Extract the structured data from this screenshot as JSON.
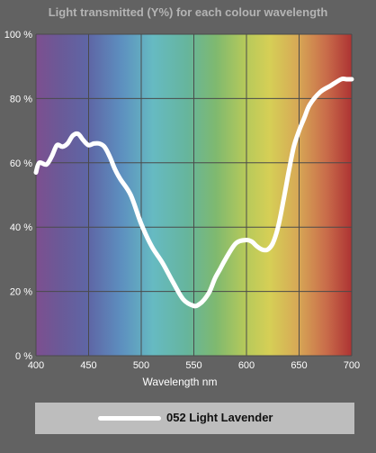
{
  "chart_data": {
    "type": "line",
    "title": "Light transmitted (Y%) for each colour wavelength",
    "xlabel": "Wavelength nm",
    "ylabel": "",
    "xlim": [
      400,
      700
    ],
    "ylim": [
      0,
      100
    ],
    "x_ticks": [
      "400",
      "450",
      "500",
      "550",
      "600",
      "650",
      "700"
    ],
    "y_ticks": [
      "0 %",
      "20 %",
      "40 %",
      "60 %",
      "80 %",
      "100 %"
    ],
    "grid": true,
    "legend_position": "bottom",
    "colors": {
      "background": "#626262",
      "line": "#ffffff",
      "grid": "#4a4a4a"
    },
    "series": [
      {
        "name": "052 Light Lavender",
        "x": [
          400,
          403,
          410,
          415,
          420,
          425,
          430,
          435,
          440,
          445,
          450,
          455,
          460,
          465,
          470,
          475,
          480,
          490,
          500,
          510,
          520,
          530,
          540,
          550,
          555,
          560,
          565,
          570,
          575,
          580,
          590,
          600,
          605,
          610,
          615,
          620,
          625,
          630,
          635,
          640,
          645,
          650,
          655,
          660,
          670,
          680,
          690,
          695,
          700
        ],
        "values": [
          57,
          60,
          59.5,
          62,
          65.5,
          65,
          66,
          68.5,
          69,
          67,
          65.5,
          66,
          66,
          65,
          62,
          58,
          55,
          50,
          41,
          34,
          29,
          23,
          17.5,
          15.5,
          16,
          17.5,
          20,
          24,
          27,
          30,
          35,
          36,
          35.5,
          34,
          33,
          33,
          35,
          40,
          48,
          57,
          65,
          70,
          74,
          78,
          82,
          84,
          86,
          86,
          86
        ]
      }
    ]
  },
  "legend": {
    "label": "052 Light Lavender"
  }
}
